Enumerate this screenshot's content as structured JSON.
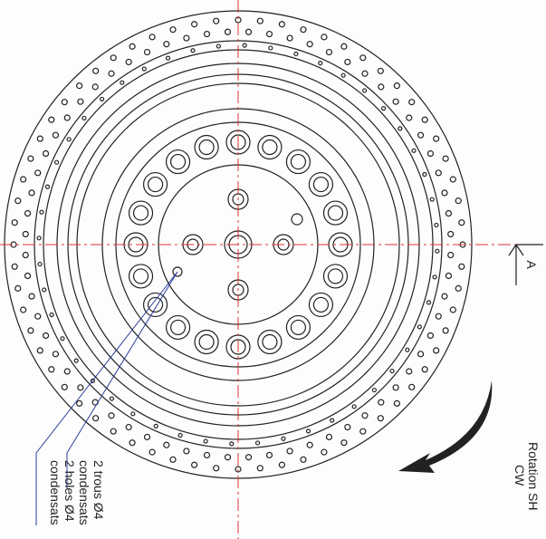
{
  "section_marker": "A",
  "rotation": {
    "lines": [
      "Rotation SH",
      "CW"
    ]
  },
  "note": {
    "lines": [
      "2 trous Ø4",
      "condensats",
      "2 holes Ø4",
      "condensats"
    ]
  }
}
